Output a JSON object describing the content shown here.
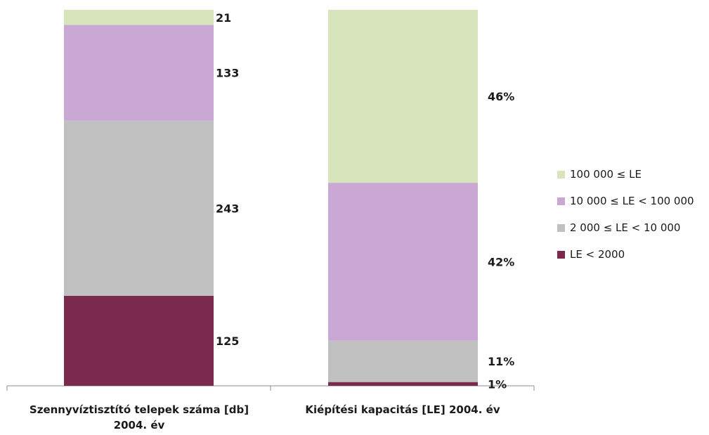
{
  "chart_data": {
    "type": "bar",
    "stacked": true,
    "normalized": true,
    "categories": [
      "Szennyvíztisztító telepek száma [db] 2004. év",
      "Kiépítési kapacitás [LE] 2004. év"
    ],
    "series": [
      {
        "name": "LE < 2000",
        "color": "#7b2a4e",
        "values": [
          125,
          1
        ],
        "labels": [
          "125",
          "1%"
        ]
      },
      {
        "name": "2 000 ≤ LE < 10 000",
        "color": "#c0c0c0",
        "values": [
          243,
          11
        ],
        "labels": [
          "243",
          "11%"
        ]
      },
      {
        "name": "10 000 ≤ LE < 100 000",
        "color": "#c9a8d4",
        "values": [
          133,
          42
        ],
        "labels": [
          "133",
          "42%"
        ]
      },
      {
        "name": "100 000 ≤ LE",
        "color": "#d8e4bc",
        "values": [
          21,
          46
        ],
        "labels": [
          "21",
          "46%"
        ]
      }
    ],
    "legend": "right",
    "grid": false
  }
}
